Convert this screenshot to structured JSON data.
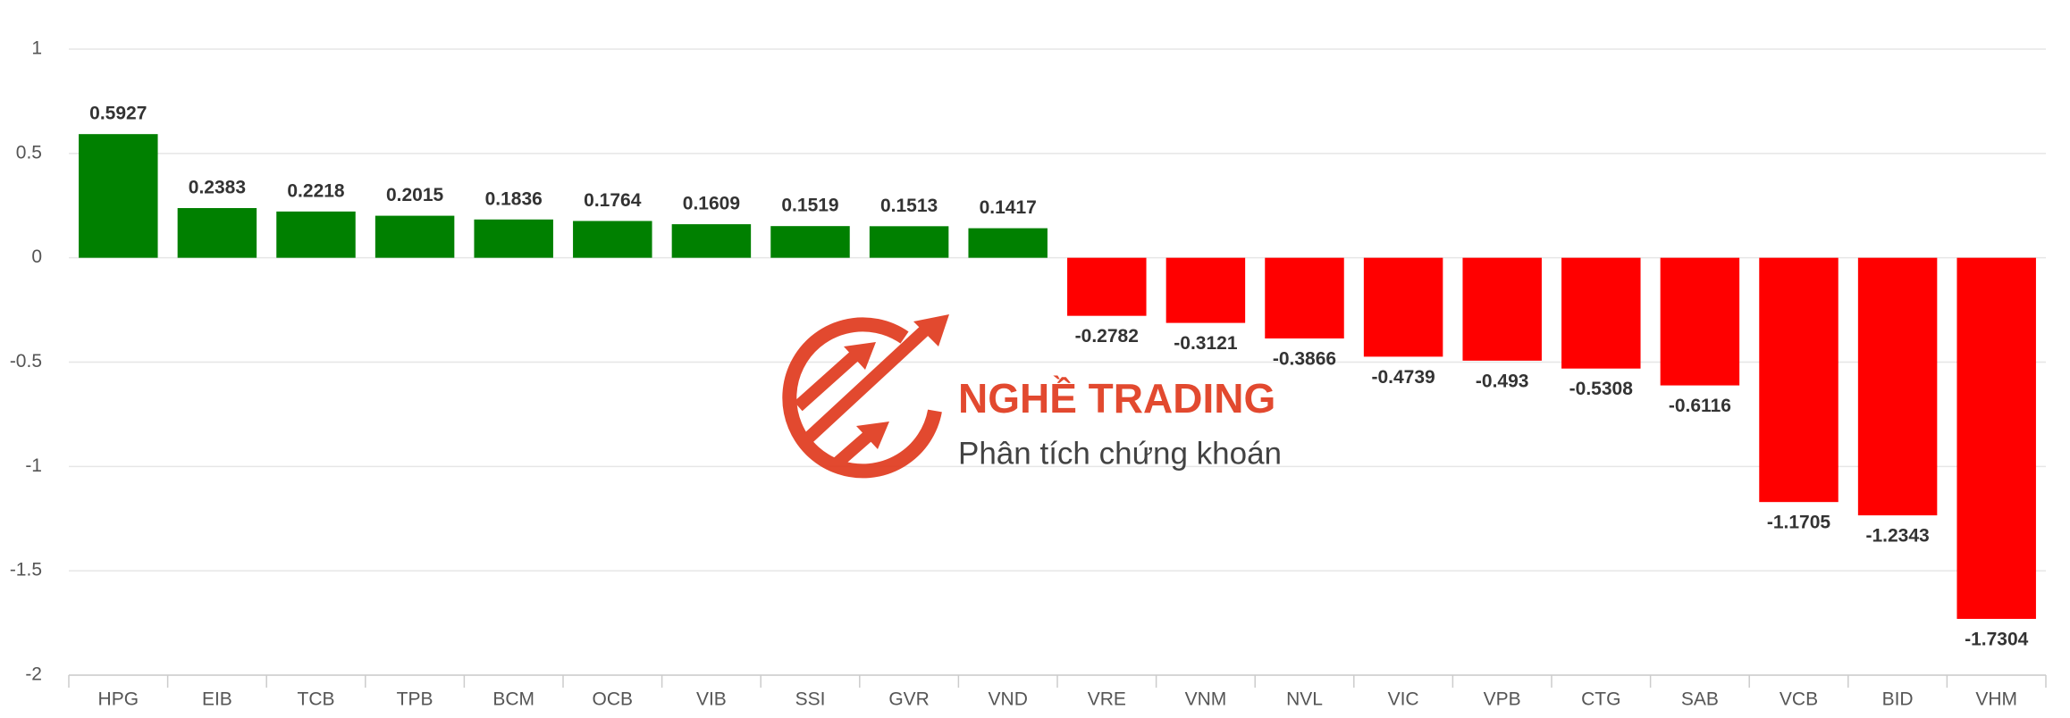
{
  "chart_data": {
    "type": "bar",
    "categories": [
      "HPG",
      "EIB",
      "TCB",
      "TPB",
      "BCM",
      "OCB",
      "VIB",
      "SSI",
      "GVR",
      "VND",
      "VRE",
      "VNM",
      "NVL",
      "VIC",
      "VPB",
      "CTG",
      "SAB",
      "VCB",
      "BID",
      "VHM"
    ],
    "values": [
      0.5927,
      0.2383,
      0.2218,
      0.2015,
      0.1836,
      0.1764,
      0.1609,
      0.1519,
      0.1513,
      0.1417,
      -0.2782,
      -0.3121,
      -0.3866,
      -0.4739,
      -0.493,
      -0.5308,
      -0.6116,
      -1.1705,
      -1.2343,
      -1.7304
    ],
    "positive_color": "#008000",
    "negative_color": "#ff0000",
    "ylim": [
      -2,
      1
    ],
    "yticks": [
      -2,
      -1.5,
      -1,
      -0.5,
      0,
      0.5,
      1
    ],
    "grid": true,
    "watermark": {
      "title": "NGHỀ TRADING",
      "subtitle": "Phân tích chứng khoán"
    }
  }
}
